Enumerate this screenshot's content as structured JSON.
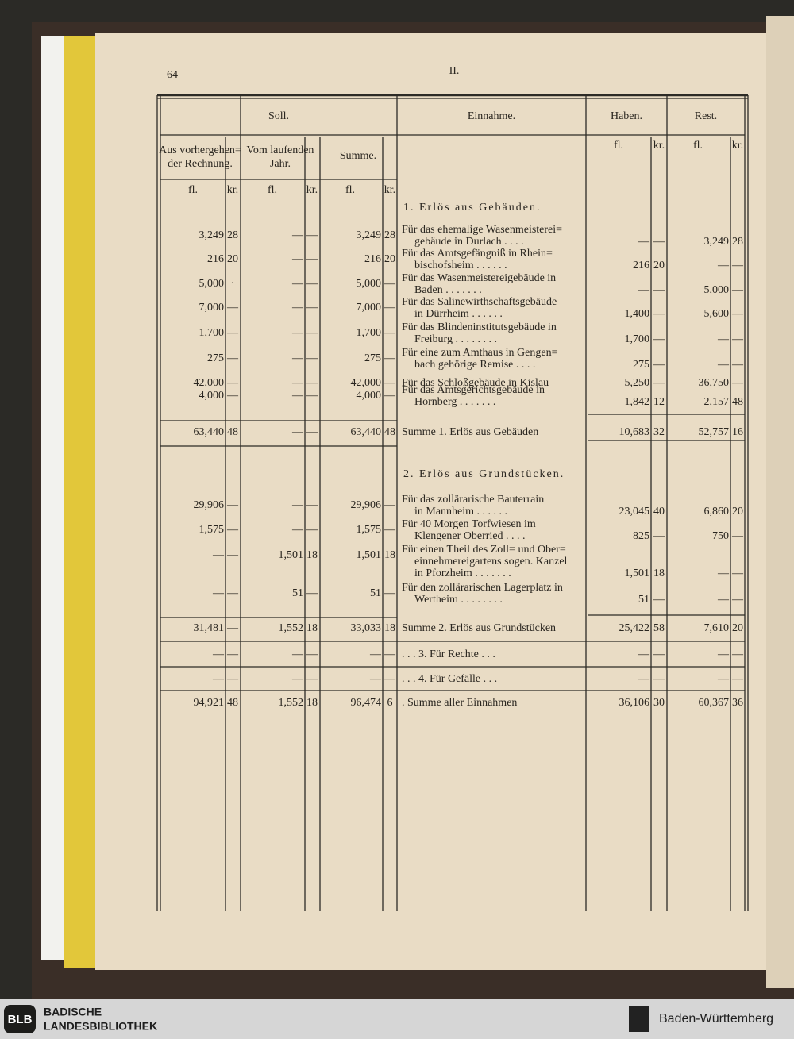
{
  "header": {
    "page_number": "64",
    "section": "II."
  },
  "table": {
    "group_headers": [
      "Soll.",
      "Einnahme.",
      "Haben.",
      "Rest."
    ],
    "sub_headers": [
      [
        "Aus vorhergehen=",
        "der Rechnung."
      ],
      [
        "Vom laufenden",
        "Jahr."
      ],
      [
        "Summe."
      ]
    ],
    "units": [
      "fl.",
      "kr.",
      "fl.",
      "kr.",
      "fl.",
      "kr.",
      "fl.",
      "kr.",
      "fl.",
      "kr."
    ],
    "rows": [
      {
        "heading": "1. Erlös aus Gebäuden."
      },
      {
        "cells": [
          "3,249",
          "28",
          "—",
          "—",
          "3,249",
          "28",
          "—",
          "—",
          "3,249",
          "28"
        ],
        "text": [
          "Für das ehemalige Wasenmeisterei=",
          "gebäude in Durlach . . . ."
        ]
      },
      {
        "cells": [
          "216",
          "20",
          "—",
          "—",
          "216",
          "20",
          "216",
          "20",
          "—",
          "—"
        ],
        "text": [
          "Für das Amtsgefängniß in Rhein=",
          "bischofsheim . . . . . ."
        ]
      },
      {
        "cells": [
          "5,000",
          "·",
          "—",
          "—",
          "5,000",
          "—",
          "—",
          "—",
          "5,000",
          "—"
        ],
        "text": [
          "Für das Wasenmeistereigebäude in",
          "Baden . . . . . . ."
        ]
      },
      {
        "cells": [
          "7,000",
          "—",
          "—",
          "—",
          "7,000",
          "—",
          "1,400",
          "—",
          "5,600",
          "—"
        ],
        "text": [
          "Für das Salinewirthschaftsgebäude",
          "in Dürrheim . . . . . ."
        ]
      },
      {
        "cells": [
          "1,700",
          "—",
          "—",
          "—",
          "1,700",
          "—",
          "1,700",
          "—",
          "—",
          "—"
        ],
        "text": [
          "Für das Blindeninstitutsgebäude in",
          "Freiburg . . . . . . . ."
        ]
      },
      {
        "cells": [
          "275",
          "—",
          "—",
          "—",
          "275",
          "—",
          "275",
          "—",
          "—",
          "—"
        ],
        "text": [
          "Für eine zum Amthaus in Gengen=",
          "bach gehörige Remise . . . ."
        ]
      },
      {
        "cells": [
          "42,000",
          "—",
          "—",
          "—",
          "42,000",
          "—",
          "5,250",
          "—",
          "36,750",
          "—"
        ],
        "text": [
          "Für das Schloßgebäude in Kislau"
        ]
      },
      {
        "cells": [
          "4,000",
          "—",
          "—",
          "—",
          "4,000",
          "—",
          "1,842",
          "12",
          "2,157",
          "48"
        ],
        "text": [
          "Für das Amtsgerichtsgebäude in",
          "Hornberg . . . . . . ."
        ]
      },
      {
        "cells": [
          "63,440",
          "48",
          "—",
          "—",
          "63,440",
          "48",
          "10,683",
          "32",
          "52,757",
          "16"
        ],
        "text": [
          "Summe 1. Erlös aus Gebäuden"
        ]
      },
      {
        "heading": "2. Erlös aus Grundstücken."
      },
      {
        "cells": [
          "29,906",
          "—",
          "—",
          "—",
          "29,906",
          "—",
          "23,045",
          "40",
          "6,860",
          "20"
        ],
        "text": [
          "Für das zollärarische Bauterrain",
          "in Mannheim . . . . . ."
        ]
      },
      {
        "cells": [
          "1,575",
          "—",
          "—",
          "—",
          "1,575",
          "—",
          "825",
          "—",
          "750",
          "—"
        ],
        "text": [
          "Für 40 Morgen Torfwiesen im",
          "Klengener Oberried . . . ."
        ]
      },
      {
        "cells": [
          "—",
          "—",
          "1,501",
          "18",
          "1,501",
          "18",
          "1,501",
          "18",
          "—",
          "—"
        ],
        "text": [
          "Für einen Theil des Zoll= und Ober=",
          "einnehmereigartens sogen. Kanzel",
          "in Pforzheim . . . . . . ."
        ]
      },
      {
        "cells": [
          "—",
          "—",
          "51",
          "—",
          "51",
          "—",
          "51",
          "—",
          "—",
          "—"
        ],
        "text": [
          "Für den zollärarischen Lagerplatz in",
          "Wertheim . . . . . . . ."
        ]
      },
      {
        "cells": [
          "31,481",
          "—",
          "1,552",
          "18",
          "33,033",
          "18",
          "25,422",
          "58",
          "7,610",
          "20"
        ],
        "text": [
          "Summe 2. Erlös aus Grundstücken"
        ]
      },
      {
        "cells": [
          "—",
          "—",
          "—",
          "—",
          "—",
          "—",
          "—",
          "—",
          "—",
          "—"
        ],
        "text": [
          ". . . 3. Für Rechte . . ."
        ]
      },
      {
        "cells": [
          "—",
          "—",
          "—",
          "—",
          "—",
          "—",
          "—",
          "—",
          "—",
          "—"
        ],
        "text": [
          ". . . 4. Für Gefälle . . ."
        ]
      },
      {
        "cells": [
          "94,921",
          "48",
          "1,552",
          "18",
          "96,474",
          "6",
          "36,106",
          "30",
          "60,367",
          "36"
        ],
        "text": [
          ". Summe aller Einnahmen"
        ]
      }
    ]
  },
  "footer": {
    "logo": "BLB",
    "name_lines": [
      "BADISCHE",
      "LANDESBIBLIOTHEK"
    ],
    "state": "Baden-Württemberg"
  }
}
